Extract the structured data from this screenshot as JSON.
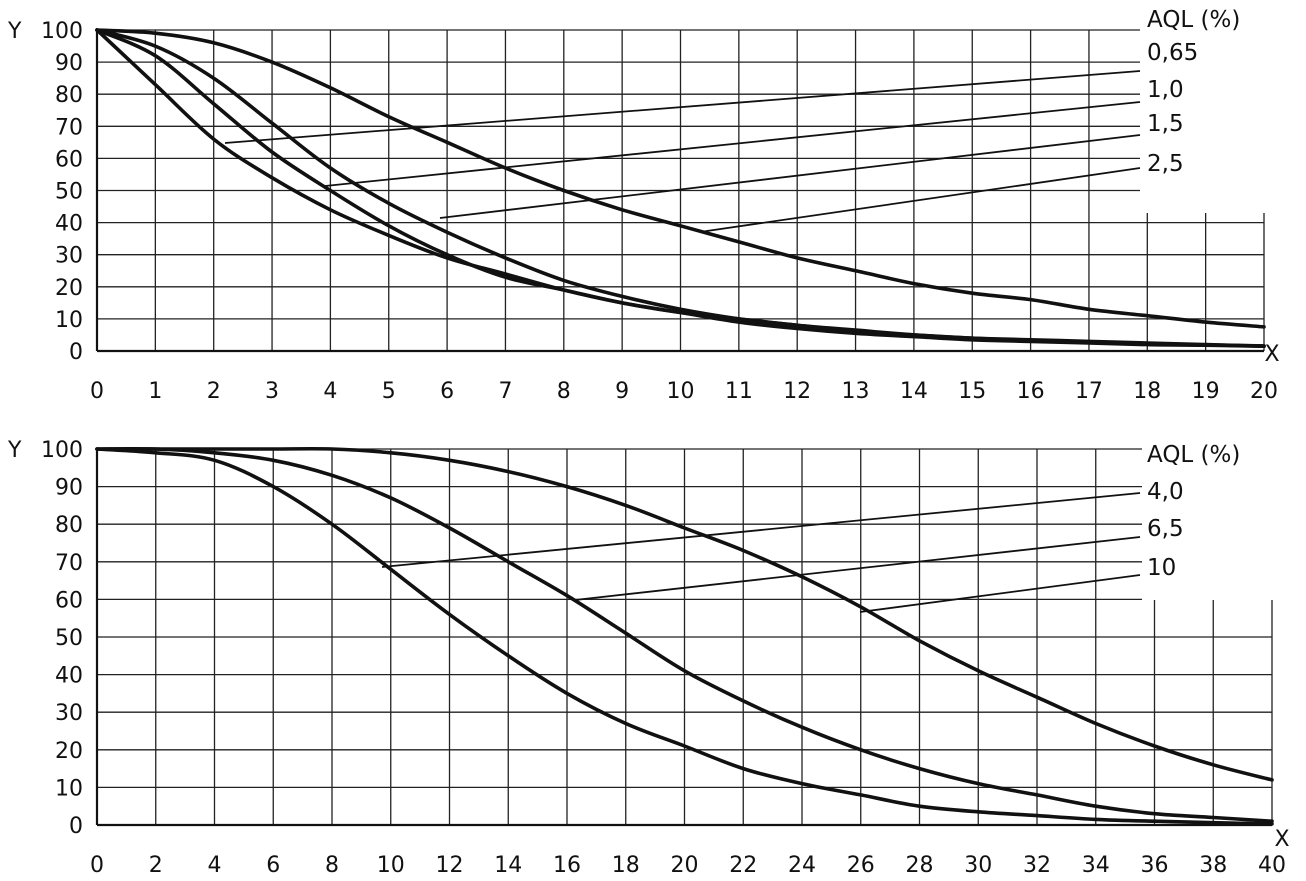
{
  "chart_data": [
    {
      "type": "line",
      "xlabel": "X",
      "ylabel": "Y",
      "xlim": [
        0,
        20
      ],
      "ylim": [
        0,
        100
      ],
      "x_ticks": [
        0,
        1,
        2,
        3,
        4,
        5,
        6,
        7,
        8,
        9,
        10,
        11,
        12,
        13,
        14,
        15,
        16,
        17,
        18,
        19,
        20
      ],
      "y_ticks": [
        0,
        10,
        20,
        30,
        40,
        50,
        60,
        70,
        80,
        90,
        100
      ],
      "grid": true,
      "legend_title": "AQL (%)",
      "legend_placement": "right",
      "series": [
        {
          "name": "0,65",
          "x": [
            0,
            1,
            2,
            3,
            4,
            5,
            6,
            7,
            8,
            9,
            10,
            11,
            12,
            13,
            14,
            15,
            16,
            17,
            18,
            19,
            20
          ],
          "y": [
            100,
            83,
            66,
            54,
            44,
            36,
            29,
            24,
            19,
            15,
            12,
            10,
            8,
            6.5,
            5,
            4,
            3.5,
            3,
            2.5,
            2,
            1.5
          ]
        },
        {
          "name": "1,0",
          "x": [
            0,
            1,
            2,
            3,
            4,
            5,
            6,
            7,
            8,
            9,
            10,
            11,
            12,
            13,
            14,
            15,
            16,
            17,
            18,
            19,
            20
          ],
          "y": [
            100,
            92,
            77,
            62,
            50,
            39,
            30,
            23,
            19,
            15,
            12,
            9,
            7,
            5.5,
            4.5,
            3.5,
            3,
            2.5,
            2,
            1.8,
            1.5
          ]
        },
        {
          "name": "1,5",
          "x": [
            0,
            1,
            2,
            3,
            4,
            5,
            6,
            7,
            8,
            9,
            10,
            11,
            12,
            13,
            14,
            15,
            16,
            17,
            18,
            19,
            20
          ],
          "y": [
            100,
            95,
            85,
            71,
            57,
            46,
            37,
            29,
            22,
            17,
            13,
            10,
            8,
            6,
            5,
            4,
            3.2,
            2.7,
            2.2,
            1.9,
            1.6
          ]
        },
        {
          "name": "2,5",
          "x": [
            0,
            1,
            2,
            3,
            4,
            5,
            6,
            7,
            8,
            9,
            10,
            11,
            12,
            13,
            14,
            15,
            16,
            17,
            18,
            19,
            20
          ],
          "y": [
            100,
            99,
            96,
            90,
            82,
            73,
            65,
            57,
            50,
            44,
            39,
            34,
            29,
            25,
            21,
            18,
            16,
            13,
            11,
            9,
            7.5
          ]
        }
      ]
    },
    {
      "type": "line",
      "xlabel": "X",
      "ylabel": "Y",
      "xlim": [
        0,
        40
      ],
      "ylim": [
        0,
        100
      ],
      "x_ticks": [
        0,
        2,
        4,
        6,
        8,
        10,
        12,
        14,
        16,
        18,
        20,
        22,
        24,
        26,
        28,
        30,
        32,
        34,
        36,
        38,
        40
      ],
      "y_ticks": [
        0,
        10,
        20,
        30,
        40,
        50,
        60,
        70,
        80,
        90,
        100
      ],
      "grid": true,
      "legend_title": "AQL (%)",
      "legend_placement": "right",
      "series": [
        {
          "name": "4,0",
          "x": [
            0,
            2,
            4,
            6,
            8,
            10,
            12,
            14,
            16,
            18,
            20,
            22,
            24,
            26,
            28,
            30,
            32,
            34,
            36,
            38,
            40
          ],
          "y": [
            100,
            99,
            97,
            90,
            80,
            68,
            56,
            45,
            35,
            27,
            21,
            15,
            11,
            8,
            5,
            3.5,
            2.5,
            1.5,
            1,
            0.6,
            0.3
          ]
        },
        {
          "name": "6,5",
          "x": [
            0,
            2,
            4,
            6,
            8,
            10,
            12,
            14,
            16,
            18,
            20,
            22,
            24,
            26,
            28,
            30,
            32,
            34,
            36,
            38,
            40
          ],
          "y": [
            100,
            100,
            99,
            97,
            93,
            87,
            79,
            70,
            61,
            51,
            41,
            33,
            26,
            20,
            15,
            11,
            8,
            5,
            3,
            2,
            1
          ]
        },
        {
          "name": "10",
          "x": [
            0,
            2,
            4,
            6,
            8,
            10,
            12,
            14,
            16,
            18,
            20,
            22,
            24,
            26,
            28,
            30,
            32,
            34,
            36,
            38,
            40
          ],
          "y": [
            100,
            100,
            100,
            100,
            100,
            99,
            97,
            94,
            90,
            85,
            79,
            73,
            66,
            58,
            49,
            41,
            34,
            27,
            21,
            16,
            12
          ]
        }
      ]
    }
  ]
}
